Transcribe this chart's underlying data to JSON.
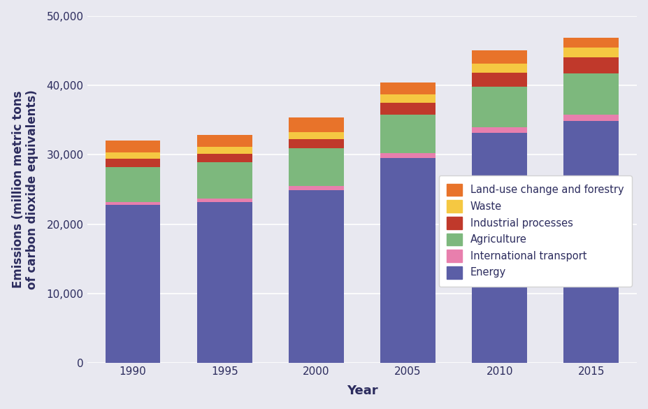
{
  "years": [
    1990,
    1995,
    2000,
    2005,
    2010,
    2015
  ],
  "energy": [
    22800,
    23200,
    24900,
    29500,
    33200,
    34900
  ],
  "international_transport": [
    400,
    500,
    600,
    700,
    800,
    900
  ],
  "agriculture": [
    5000,
    5200,
    5400,
    5600,
    5800,
    5900
  ],
  "industrial_processes": [
    1200,
    1200,
    1300,
    1700,
    2000,
    2300
  ],
  "waste": [
    900,
    1000,
    1100,
    1200,
    1300,
    1400
  ],
  "land_use": [
    1700,
    1800,
    2100,
    1700,
    1900,
    1400
  ],
  "colors": {
    "energy": "#5b5ea6",
    "international_transport": "#e87fad",
    "agriculture": "#7db87d",
    "industrial_processes": "#c0392b",
    "waste": "#f5c842",
    "land_use": "#e8732a"
  },
  "legend_labels": [
    "Land-use change and forestry",
    "Waste",
    "Industrial processes",
    "Agriculture",
    "International transport",
    "Energy"
  ],
  "xlabel": "Year",
  "ylabel": "Emissions (million metric tons\nof carbon dioxide equivalents)",
  "ylim": [
    0,
    50000
  ],
  "yticks": [
    0,
    10000,
    20000,
    30000,
    40000,
    50000
  ],
  "ytick_labels": [
    "0",
    "10,000",
    "20,000",
    "30,000",
    "40,000",
    "50,000"
  ],
  "bg_color": "#e8e8f0",
  "axis_label_fontsize": 13,
  "tick_fontsize": 11
}
